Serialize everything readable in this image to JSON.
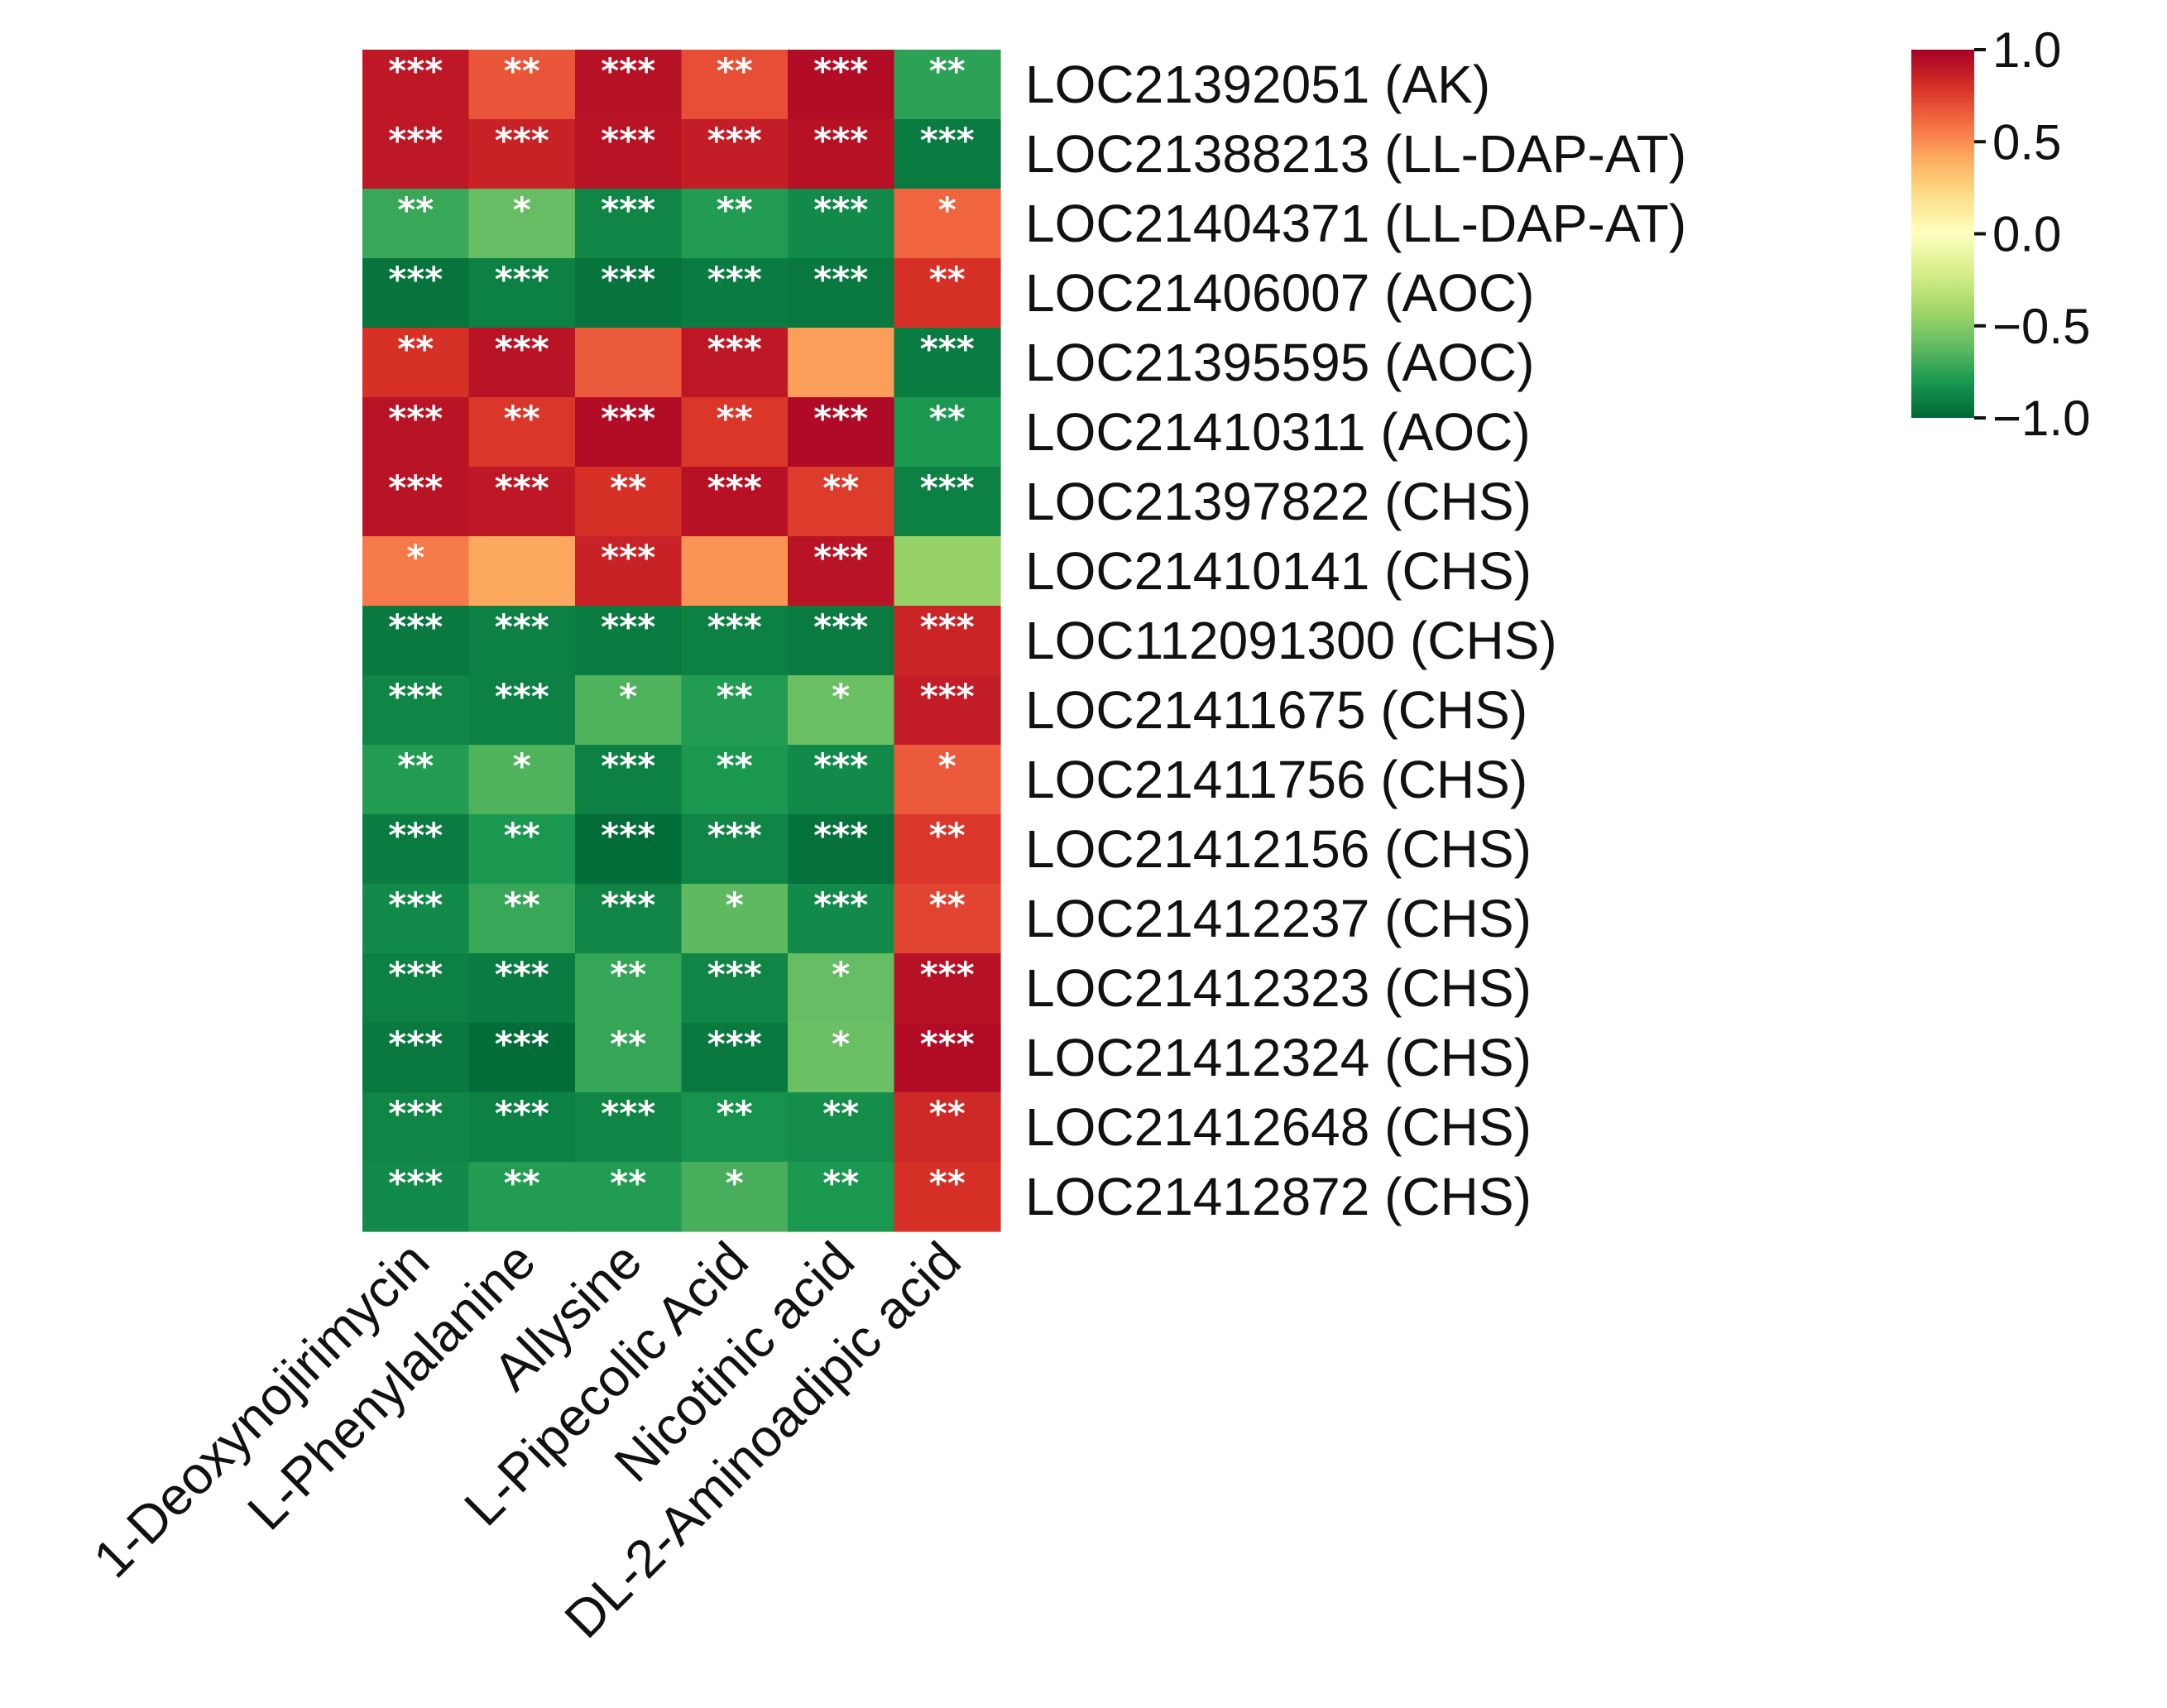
{
  "chart_data": {
    "type": "heatmap",
    "title": "",
    "xlabel": "",
    "ylabel": "",
    "columns": [
      "1-Deoxynojirimycin",
      "L-Phenylalanine",
      "Allysine",
      "L-Pipecolic Acid",
      "Nicotinic acid",
      "DL-2-Aminoadipic acid"
    ],
    "rows": [
      "LOC21392051 (AK)",
      "LOC21388213 (LL-DAP-AT)",
      "LOC21404371 (LL-DAP-AT)",
      "LOC21406007 (AOC)",
      "LOC21395595 (AOC)",
      "LOC21410311 (AOC)",
      "LOC21397822 (CHS)",
      "LOC21410141 (CHS)",
      "LOC112091300 (CHS)",
      "LOC21411675 (CHS)",
      "LOC21411756 (CHS)",
      "LOC21412156 (CHS)",
      "LOC21412237 (CHS)",
      "LOC21412323 (CHS)",
      "LOC21412324 (CHS)",
      "LOC21412648 (CHS)",
      "LOC21412872 (CHS)"
    ],
    "values": [
      [
        0.9,
        0.68,
        0.93,
        0.7,
        0.95,
        -0.75
      ],
      [
        0.9,
        0.86,
        0.92,
        0.88,
        0.93,
        -0.92
      ],
      [
        -0.72,
        -0.6,
        -0.88,
        -0.78,
        -0.86,
        0.63
      ],
      [
        -0.95,
        -0.9,
        -0.95,
        -0.92,
        -0.93,
        0.8
      ],
      [
        0.8,
        0.92,
        0.66,
        0.9,
        0.45,
        -0.92
      ],
      [
        0.92,
        0.78,
        0.95,
        0.78,
        0.96,
        -0.8
      ],
      [
        0.92,
        0.9,
        0.8,
        0.93,
        0.76,
        -0.9
      ],
      [
        0.56,
        0.42,
        0.86,
        0.48,
        0.92,
        -0.45
      ],
      [
        -0.93,
        -0.9,
        -0.92,
        -0.9,
        -0.92,
        0.85
      ],
      [
        -0.88,
        -0.9,
        -0.66,
        -0.78,
        -0.58,
        0.88
      ],
      [
        -0.78,
        -0.66,
        -0.9,
        -0.8,
        -0.86,
        0.66
      ],
      [
        -0.92,
        -0.8,
        -0.98,
        -0.88,
        -0.96,
        0.78
      ],
      [
        -0.86,
        -0.72,
        -0.88,
        -0.62,
        -0.86,
        0.73
      ],
      [
        -0.9,
        -0.92,
        -0.73,
        -0.88,
        -0.6,
        0.93
      ],
      [
        -0.93,
        -0.98,
        -0.73,
        -0.93,
        -0.58,
        0.95
      ],
      [
        -0.88,
        -0.9,
        -0.88,
        -0.82,
        -0.84,
        0.83
      ],
      [
        -0.86,
        -0.78,
        -0.78,
        -0.68,
        -0.8,
        0.8
      ]
    ],
    "significance": [
      [
        "***",
        "**",
        "***",
        "**",
        "***",
        "**"
      ],
      [
        "***",
        "***",
        "***",
        "***",
        "***",
        "***"
      ],
      [
        "**",
        "*",
        "***",
        "**",
        "***",
        "*"
      ],
      [
        "***",
        "***",
        "***",
        "***",
        "***",
        "**"
      ],
      [
        "**",
        "***",
        "",
        "***",
        "",
        "***"
      ],
      [
        "***",
        "**",
        "***",
        "**",
        "***",
        "**"
      ],
      [
        "***",
        "***",
        "**",
        "***",
        "**",
        "***"
      ],
      [
        "*",
        "",
        "***",
        "",
        "***",
        ""
      ],
      [
        "***",
        "***",
        "***",
        "***",
        "***",
        "***"
      ],
      [
        "***",
        "***",
        "*",
        "**",
        "*",
        "***"
      ],
      [
        "**",
        "*",
        "***",
        "**",
        "***",
        "*"
      ],
      [
        "***",
        "**",
        "***",
        "***",
        "***",
        "**"
      ],
      [
        "***",
        "**",
        "***",
        "*",
        "***",
        "**"
      ],
      [
        "***",
        "***",
        "**",
        "***",
        "*",
        "***"
      ],
      [
        "***",
        "***",
        "**",
        "***",
        "*",
        "***"
      ],
      [
        "***",
        "***",
        "***",
        "**",
        "**",
        "**"
      ],
      [
        "***",
        "**",
        "**",
        "*",
        "**",
        "**"
      ]
    ],
    "colorbar": {
      "range": [
        -1.0,
        1.0
      ],
      "ticks": [
        1.0,
        0.5,
        0.0,
        -0.5,
        -1.0
      ],
      "tick_labels": [
        "1.0",
        "0.5",
        "0.0",
        "−0.5",
        "−1.0"
      ],
      "colors": [
        "#006837",
        "#1a9850",
        "#66bd63",
        "#a6d96a",
        "#d9ef8b",
        "#ffffbf",
        "#fee08b",
        "#fdae61",
        "#f46d43",
        "#d73027",
        "#a50026"
      ]
    },
    "legend_position": "top-right",
    "grid": false
  }
}
